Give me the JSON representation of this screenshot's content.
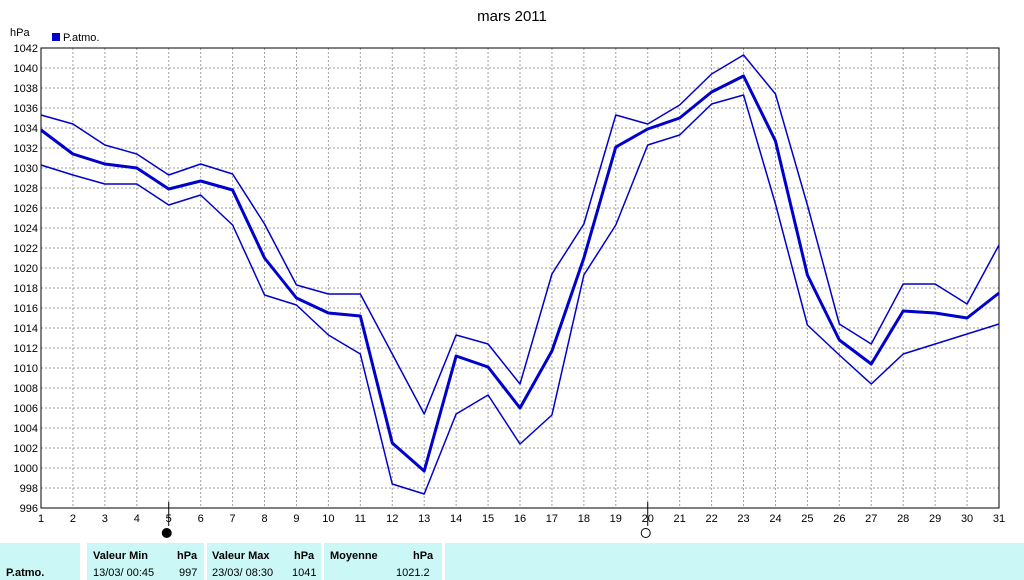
{
  "chart_data": {
    "type": "line",
    "title": "mars 2011",
    "ylabel": "hPa",
    "ylim": [
      996,
      1042
    ],
    "y_ticks": [
      996,
      998,
      1000,
      1002,
      1004,
      1006,
      1008,
      1010,
      1012,
      1014,
      1016,
      1018,
      1020,
      1022,
      1024,
      1026,
      1028,
      1030,
      1032,
      1034,
      1036,
      1038,
      1040,
      1042
    ],
    "x": [
      1,
      2,
      3,
      4,
      5,
      6,
      7,
      8,
      9,
      10,
      11,
      12,
      13,
      14,
      15,
      16,
      17,
      18,
      19,
      20,
      21,
      22,
      23,
      24,
      25,
      26,
      27,
      28,
      29,
      30,
      31
    ],
    "legend": "P.atmo.",
    "grid": true,
    "moon_phases": [
      {
        "day": 5,
        "phase": "new-moon"
      },
      {
        "day": 20,
        "phase": "full-moon"
      }
    ],
    "series": [
      {
        "name": "P.atmo.",
        "role": "max",
        "values": [
          1035.3,
          1034.4,
          1032.3,
          1031.4,
          1029.3,
          1030.4,
          1029.4,
          1024.4,
          1018.3,
          1017.4,
          1017.4,
          1011.4,
          1005.4,
          1013.3,
          1012.4,
          1008.4,
          1019.4,
          1024.4,
          1035.3,
          1034.4,
          1036.3,
          1039.4,
          1041.3,
          1037.4,
          1026.3,
          1014.4,
          1012.4,
          1018.4,
          1018.4,
          1016.4,
          1022.3
        ]
      },
      {
        "name": "P.atmo.",
        "role": "avg",
        "values": [
          1033.8,
          1031.4,
          1030.4,
          1030.0,
          1027.9,
          1028.7,
          1027.8,
          1021.0,
          1017.0,
          1015.5,
          1015.2,
          1002.5,
          999.7,
          1011.2,
          1010.1,
          1006.0,
          1011.7,
          1021.0,
          1032.1,
          1033.9,
          1035.0,
          1037.6,
          1039.2,
          1032.7,
          1019.3,
          1012.8,
          1010.4,
          1015.7,
          1015.5,
          1015.0,
          1017.5
        ]
      },
      {
        "name": "P.atmo.",
        "role": "min",
        "values": [
          1030.3,
          1029.3,
          1028.4,
          1028.4,
          1026.3,
          1027.3,
          1024.3,
          1017.3,
          1016.3,
          1013.3,
          1011.4,
          998.4,
          997.4,
          1005.4,
          1007.3,
          1002.4,
          1005.3,
          1019.3,
          1024.3,
          1032.3,
          1033.3,
          1036.4,
          1037.3,
          1026.4,
          1014.3,
          1011.3,
          1008.4,
          1011.4,
          1012.4,
          1013.4,
          1014.4
        ]
      }
    ],
    "colors": {
      "line": "#0000cc",
      "grid": "#a0a0a0",
      "stats_bg": "#ccf7f7"
    }
  },
  "stats": {
    "row_label": "P.atmo.",
    "min": {
      "header": "Valeur Min",
      "unit": "hPa",
      "datetime": "13/03/  00:45",
      "value": "997"
    },
    "max": {
      "header": "Valeur Max",
      "unit": "hPa",
      "datetime": "23/03/  08:30",
      "value": "1041"
    },
    "avg": {
      "header": "Moyenne",
      "unit": "hPa",
      "value": "1021.2"
    }
  }
}
